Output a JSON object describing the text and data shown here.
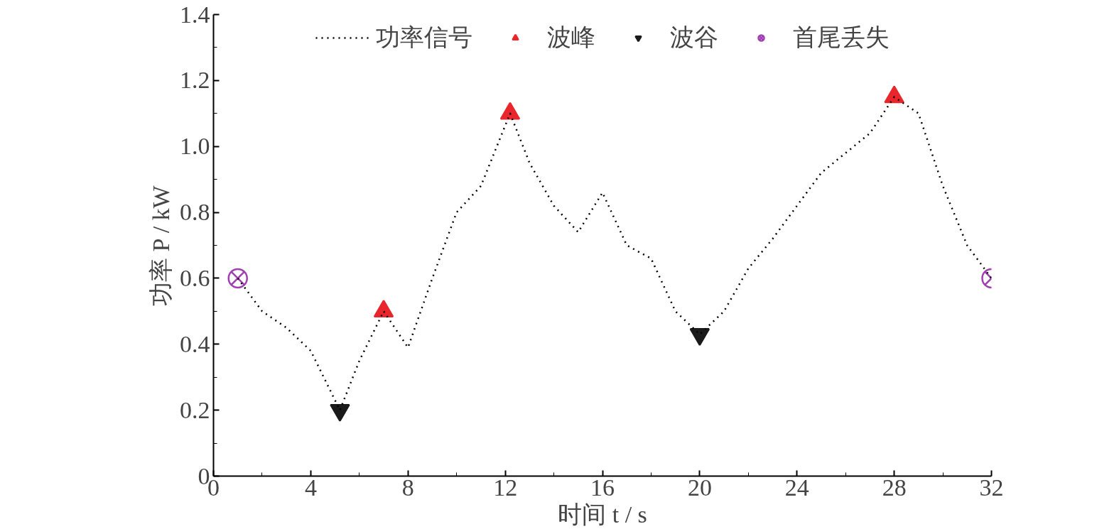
{
  "chart_data": {
    "type": "line",
    "xlabel": "时间 t / s",
    "ylabel": "功率 P / kW",
    "xlim": [
      0,
      32
    ],
    "ylim": [
      0,
      1.4
    ],
    "xticks": [
      0,
      4,
      8,
      12,
      16,
      20,
      24,
      28,
      32
    ],
    "yticks": [
      0,
      0.2,
      0.4,
      0.6,
      0.8,
      {
        "value": 1,
        "label": "1.0"
      },
      1.2,
      1.4
    ],
    "grid": false,
    "legend": "top",
    "series": [
      {
        "name": "功率信号",
        "line_style": "dotted",
        "marker": "none",
        "color": "#000000",
        "x": [
          1,
          2,
          3,
          4,
          5.2,
          6,
          7,
          8,
          9,
          10,
          11,
          12.2,
          13,
          14,
          15,
          16,
          17,
          18,
          19,
          20,
          21,
          22,
          23,
          24,
          25,
          26,
          27,
          28,
          29,
          30,
          31,
          32
        ],
        "values": [
          0.6,
          0.5,
          0.45,
          0.38,
          0.2,
          0.35,
          0.5,
          0.39,
          0.6,
          0.8,
          0.88,
          1.1,
          0.95,
          0.82,
          0.74,
          0.86,
          0.7,
          0.66,
          0.5,
          0.43,
          0.5,
          0.63,
          0.72,
          0.82,
          0.92,
          0.98,
          1.04,
          1.15,
          1.1,
          0.88,
          0.7,
          0.6
        ]
      },
      {
        "name": "波峰",
        "type": "scatter",
        "marker": "triangle",
        "color": "#e8262b",
        "x": [
          7,
          12.2,
          28
        ],
        "values": [
          0.5,
          1.1,
          1.15
        ]
      },
      {
        "name": "波谷",
        "type": "scatter",
        "color": "#1a1a1a",
        "x": [
          5.2,
          20
        ],
        "values": [
          0.2,
          0.43
        ]
      },
      {
        "name": "首尾丢失",
        "type": "scatter",
        "color": "#a040b0",
        "x": [
          1,
          32
        ],
        "values": [
          0.6,
          0.6
        ]
      }
    ]
  }
}
